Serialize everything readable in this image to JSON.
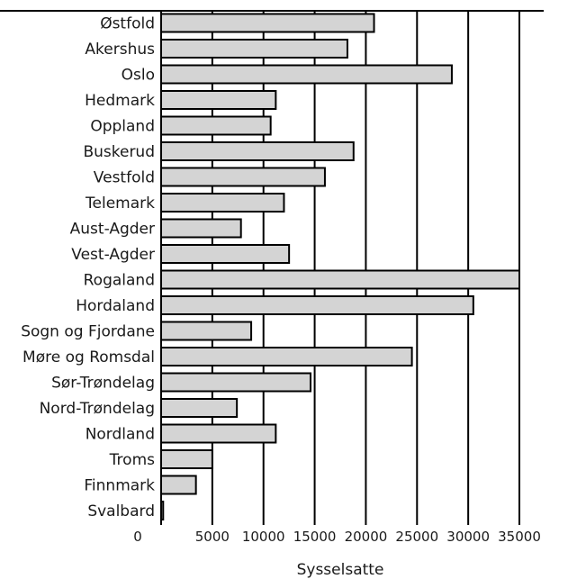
{
  "chart_data": {
    "type": "bar",
    "orientation": "horizontal",
    "categories": [
      "Østfold",
      "Akershus",
      "Oslo",
      "Hedmark",
      "Oppland",
      "Buskerud",
      "Vestfold",
      "Telemark",
      "Aust-Agder",
      "Vest-Agder",
      "Rogaland",
      "Hordaland",
      "Sogn og Fjordane",
      "Møre og Romsdal",
      "Sør-Trøndelag",
      "Nord-Trøndelag",
      "Nordland",
      "Troms",
      "Finnmark",
      "Svalbard"
    ],
    "values": [
      20800,
      18200,
      28400,
      11200,
      10700,
      18800,
      16000,
      12000,
      7800,
      12500,
      35000,
      30500,
      8800,
      24500,
      14600,
      7400,
      11200,
      5000,
      3400,
      200
    ],
    "xlabel": "Sysselsatte",
    "x_ticks": [
      "0",
      "5000",
      "10000",
      "15000",
      "20000",
      "25000",
      "30000",
      "35000"
    ],
    "xlim": [
      0,
      35000
    ],
    "grid": "vertical",
    "legend": "none",
    "colors": {
      "bar_fill": "#d4d4d4",
      "bar_stroke": "#000000",
      "grid": "#000000"
    }
  }
}
